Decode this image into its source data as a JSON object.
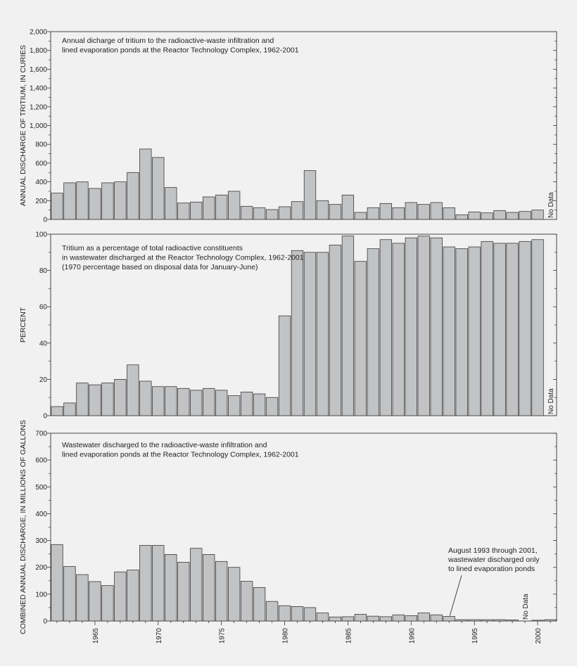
{
  "chart_data": [
    {
      "type": "bar",
      "title_lines": [
        "Annual dicharge of tritium to the radioactive-waste infiltration and",
        "lined evaporation ponds at the Reactor Technology Complex, 1962-2001"
      ],
      "ylabel": "ANNUAL DISCHARGE OF TRITIUM, IN CURIES",
      "ylim": [
        0,
        2000
      ],
      "yticks": [
        "0",
        "200",
        "400",
        "600",
        "800",
        "1,000",
        "1,200",
        "1,400",
        "1,600",
        "1,800",
        "2,000"
      ],
      "x": [
        1962,
        1963,
        1964,
        1965,
        1966,
        1967,
        1968,
        1969,
        1970,
        1971,
        1972,
        1973,
        1974,
        1975,
        1976,
        1977,
        1978,
        1979,
        1980,
        1981,
        1982,
        1983,
        1984,
        1985,
        1986,
        1987,
        1988,
        1989,
        1990,
        1991,
        1992,
        1993,
        1994,
        1995,
        1996,
        1997,
        1998,
        1999,
        2000,
        2001
      ],
      "values": [
        280,
        390,
        400,
        330,
        390,
        400,
        500,
        750,
        660,
        340,
        175,
        185,
        240,
        260,
        300,
        140,
        125,
        105,
        135,
        190,
        520,
        200,
        160,
        260,
        75,
        125,
        170,
        125,
        180,
        160,
        180,
        125,
        50,
        80,
        70,
        95,
        75,
        85,
        100,
        null
      ],
      "no_data_label": "No Data",
      "grid": false
    },
    {
      "type": "bar",
      "title_lines": [
        "Tritium as a percentage of total radioactive constituents",
        "in wastewater discharged at the Reactor Technology Complex, 1962-2001",
        "(1970 percentage based on disposal data for January-June)"
      ],
      "ylabel": "PERCENT",
      "ylim": [
        0,
        100
      ],
      "yticks": [
        "0",
        "20",
        "40",
        "60",
        "80",
        "100"
      ],
      "x": [
        1962,
        1963,
        1964,
        1965,
        1966,
        1967,
        1968,
        1969,
        1970,
        1971,
        1972,
        1973,
        1974,
        1975,
        1976,
        1977,
        1978,
        1979,
        1980,
        1981,
        1982,
        1983,
        1984,
        1985,
        1986,
        1987,
        1988,
        1989,
        1990,
        1991,
        1992,
        1993,
        1994,
        1995,
        1996,
        1997,
        1998,
        1999,
        2000,
        2001
      ],
      "values": [
        5,
        7,
        18,
        17,
        18,
        20,
        28,
        19,
        16,
        16,
        15,
        14,
        15,
        14,
        11,
        13,
        12,
        10,
        55,
        91,
        90,
        90,
        94,
        99,
        85,
        92,
        97,
        95,
        98,
        99,
        98,
        93,
        92,
        93,
        96,
        95,
        95,
        96,
        97,
        null
      ],
      "no_data_label": "No Data",
      "grid": false
    },
    {
      "type": "bar",
      "title_lines": [
        "Wastewater discharged to the radioactive-waste infiltration and",
        "lined evaporation ponds at the Reactor Technology Complex, 1962-2001"
      ],
      "ylabel": "COMBINED ANNUAL DISCHARGE, IN MILLIONS OF GALLONS",
      "ylim": [
        0,
        700
      ],
      "yticks": [
        "0",
        "100",
        "200",
        "300",
        "400",
        "500",
        "600",
        "700"
      ],
      "x": [
        1962,
        1963,
        1964,
        1965,
        1966,
        1967,
        1968,
        1969,
        1970,
        1971,
        1972,
        1973,
        1974,
        1975,
        1976,
        1977,
        1978,
        1979,
        1980,
        1981,
        1982,
        1983,
        1984,
        1985,
        1986,
        1987,
        1988,
        1989,
        1990,
        1991,
        1992,
        1993,
        1994,
        1995,
        1996,
        1997,
        1998,
        1999,
        2000,
        2001
      ],
      "values": [
        285,
        203,
        173,
        147,
        132,
        183,
        190,
        282,
        282,
        248,
        219,
        271,
        248,
        222,
        200,
        148,
        125,
        73,
        57,
        54,
        50,
        30,
        15,
        16,
        25,
        18,
        16,
        23,
        20,
        30,
        23,
        17,
        5,
        5,
        5,
        5,
        4,
        null,
        3,
        5
      ],
      "no_data_label": "No Data",
      "annotation_lines": [
        "August 1993 through 2001,",
        "wastewater discharged only",
        "to lined evaporation ponds"
      ],
      "annotation_year": 1993,
      "xtick_labels": [
        "1965",
        "1970",
        "1975",
        "1980",
        "1985",
        "1990",
        "1995",
        "2000"
      ],
      "grid": false
    }
  ],
  "colors": {
    "background": "#f1f1f2",
    "bar_fill": "#c2c3c5",
    "bar_stroke": "#3a3a3a",
    "axis": "#333333",
    "text": "#222222"
  }
}
